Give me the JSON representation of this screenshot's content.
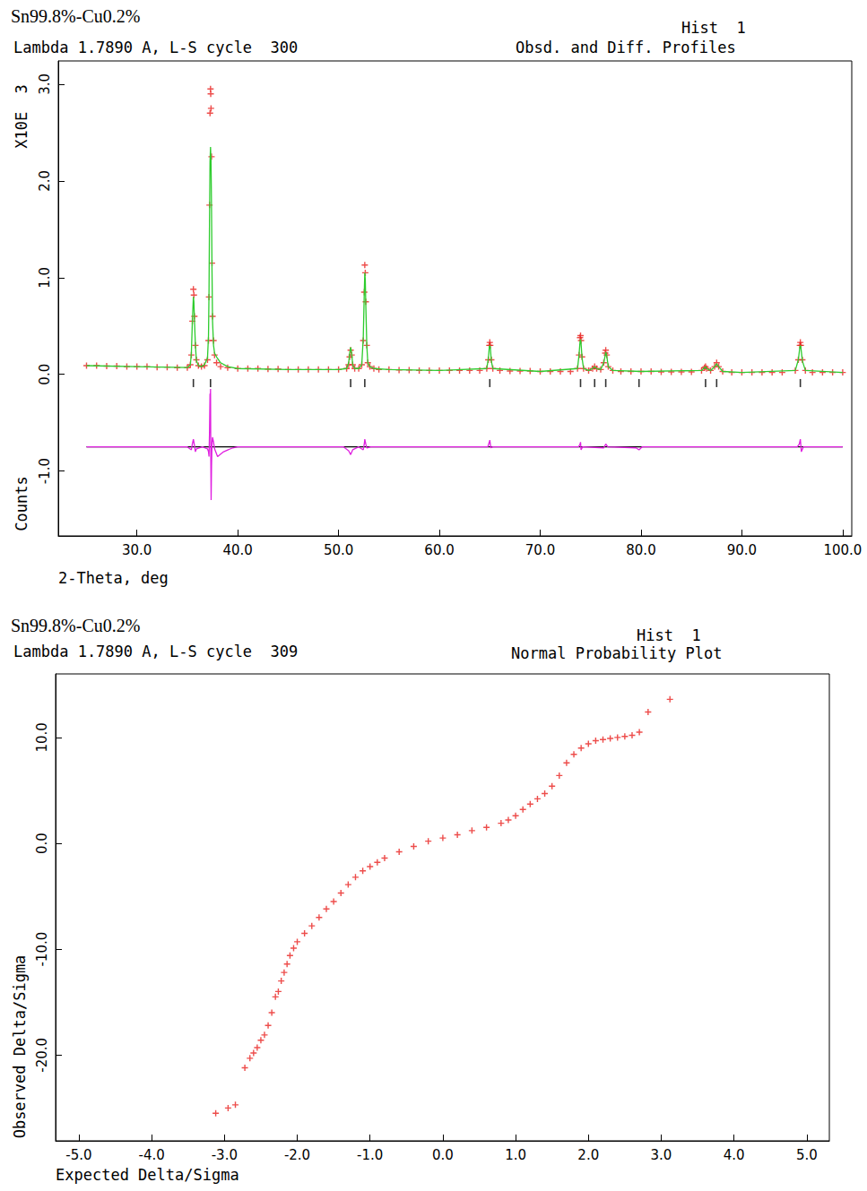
{
  "chart_data": [
    {
      "type": "rietveld",
      "title": "Sn99.8%-Cu0.2%",
      "subtitle": "Lambda 1.7890 A, L-S cycle  300",
      "histogram_label": "Hist  1",
      "plot_label": "Obsd. and Diff. Profiles",
      "xlabel": "2-Theta, deg",
      "ylabel": "Counts",
      "yscale_label": "X10E  3",
      "grid": false,
      "xlim": [
        22.2,
        100.9
      ],
      "ylim": [
        -1.67,
        3.24
      ],
      "xticks": [
        {
          "value": 30,
          "label": "30.0"
        },
        {
          "value": 40,
          "label": "40.0"
        },
        {
          "value": 50,
          "label": "50.0"
        },
        {
          "value": 60,
          "label": "60.0"
        },
        {
          "value": 70,
          "label": "70.0"
        },
        {
          "value": 80,
          "label": "80.0"
        },
        {
          "value": 90,
          "label": "90.0"
        },
        {
          "value": 100,
          "label": "100.0"
        }
      ],
      "yticks": [
        {
          "value": -1,
          "label": "-1.0"
        },
        {
          "value": 0,
          "label": "0.0"
        },
        {
          "value": 1,
          "label": "1.0"
        },
        {
          "value": 2,
          "label": "2.0"
        },
        {
          "value": 3,
          "label": "3.0"
        }
      ],
      "series": [
        {
          "type": "line",
          "line_style": "solid",
          "color": "#2ecc2e",
          "x": [
            25,
            30,
            35,
            35.3,
            35.4,
            35.5,
            35.6,
            35.65,
            35.7,
            35.8,
            35.9,
            36.1,
            36.4,
            36.7,
            37,
            37.1,
            37.15,
            37.2,
            37.25,
            37.3,
            37.35,
            37.4,
            37.45,
            37.5,
            37.6,
            37.7,
            37.9,
            38.3,
            39,
            40,
            45,
            50,
            50.8,
            51,
            51.1,
            51.2,
            51.3,
            51.4,
            51.6,
            52,
            52.3,
            52.45,
            52.55,
            52.6,
            52.65,
            52.7,
            52.8,
            52.9,
            53.1,
            53.5,
            55,
            60,
            64.7,
            64.85,
            64.95,
            65,
            65.05,
            65.15,
            65.3,
            70,
            73.7,
            73.85,
            73.95,
            74,
            74.05,
            74.15,
            74.3,
            74.8,
            75.2,
            75.4,
            75.6,
            76,
            76.3,
            76.45,
            76.5,
            76.6,
            76.75,
            77.2,
            80,
            86,
            86.3,
            86.4,
            86.5,
            86.9,
            87.3,
            87.5,
            87.7,
            88.1,
            90,
            95.3,
            95.6,
            95.75,
            95.8,
            95.85,
            96,
            96.3,
            100
          ],
          "values": [
            0.09,
            0.08,
            0.07,
            0.1,
            0.22,
            0.55,
            0.8,
            0.75,
            0.58,
            0.3,
            0.14,
            0.09,
            0.08,
            0.1,
            0.17,
            0.4,
            0.85,
            1.6,
            2.2,
            2.35,
            2.2,
            1.7,
            1.05,
            0.55,
            0.3,
            0.22,
            0.18,
            0.12,
            0.08,
            0.06,
            0.05,
            0.05,
            0.06,
            0.12,
            0.22,
            0.28,
            0.22,
            0.1,
            0.06,
            0.06,
            0.1,
            0.38,
            0.85,
            1.05,
            0.98,
            0.72,
            0.3,
            0.12,
            0.08,
            0.06,
            0.05,
            0.04,
            0.06,
            0.16,
            0.28,
            0.3,
            0.28,
            0.14,
            0.06,
            0.03,
            0.06,
            0.2,
            0.34,
            0.36,
            0.32,
            0.17,
            0.06,
            0.04,
            0.06,
            0.08,
            0.06,
            0.05,
            0.12,
            0.2,
            0.23,
            0.19,
            0.08,
            0.04,
            0.03,
            0.04,
            0.07,
            0.08,
            0.06,
            0.04,
            0.08,
            0.11,
            0.08,
            0.03,
            0.02,
            0.04,
            0.15,
            0.28,
            0.3,
            0.28,
            0.14,
            0.04,
            0.02
          ]
        },
        {
          "type": "scatter",
          "marker": "plus",
          "color": "#e8201e",
          "x": [
            25,
            26,
            27,
            28,
            29,
            30,
            31,
            32,
            33,
            34,
            35,
            35.3,
            35.4,
            35.5,
            35.6,
            35.65,
            35.7,
            35.8,
            35.9,
            36.1,
            36.4,
            36.7,
            37,
            37.1,
            37.15,
            37.2,
            37.25,
            37.3,
            37.32,
            37.35,
            37.4,
            37.45,
            37.5,
            37.6,
            37.7,
            37.9,
            38.3,
            39,
            40,
            41,
            42,
            43,
            44,
            45,
            46,
            47,
            48,
            49,
            50,
            50.8,
            51,
            51.1,
            51.2,
            51.3,
            51.4,
            51.6,
            52,
            52.3,
            52.45,
            52.55,
            52.6,
            52.65,
            52.7,
            52.8,
            52.9,
            53.1,
            53.5,
            54,
            55,
            56,
            57,
            58,
            59,
            60,
            61,
            62,
            63,
            64,
            64.7,
            64.85,
            64.95,
            65,
            65.05,
            65.15,
            65.3,
            66,
            67,
            68,
            69,
            70,
            71,
            72,
            73,
            73.7,
            73.85,
            73.95,
            74,
            74.05,
            74.15,
            74.3,
            74.8,
            75.2,
            75.4,
            75.6,
            76,
            76.3,
            76.45,
            76.5,
            76.6,
            76.75,
            77.2,
            78,
            79,
            80,
            81,
            82,
            83,
            84,
            85,
            86,
            86.3,
            86.4,
            86.5,
            86.9,
            87.3,
            87.5,
            87.7,
            88.1,
            89,
            90,
            91,
            92,
            93,
            94,
            95.3,
            95.6,
            95.75,
            95.8,
            95.85,
            96,
            96.3,
            97,
            98,
            99,
            100
          ],
          "values": [
            0.09,
            0.09,
            0.085,
            0.085,
            0.08,
            0.08,
            0.08,
            0.075,
            0.075,
            0.07,
            0.07,
            0.1,
            0.2,
            0.55,
            0.88,
            0.82,
            0.6,
            0.3,
            0.15,
            0.09,
            0.08,
            0.09,
            0.15,
            0.35,
            0.8,
            1.75,
            2.7,
            2.95,
            2.9,
            2.75,
            2.25,
            1.15,
            0.6,
            0.35,
            0.2,
            0.12,
            0.08,
            0.07,
            0.06,
            0.06,
            0.06,
            0.055,
            0.055,
            0.05,
            0.05,
            0.05,
            0.05,
            0.05,
            0.05,
            0.06,
            0.1,
            0.18,
            0.25,
            0.2,
            0.1,
            0.06,
            0.06,
            0.1,
            0.35,
            0.85,
            1.13,
            1.05,
            0.75,
            0.3,
            0.12,
            0.08,
            0.06,
            0.05,
            0.05,
            0.045,
            0.045,
            0.04,
            0.04,
            0.04,
            0.04,
            0.04,
            0.04,
            0.04,
            0.06,
            0.15,
            0.3,
            0.33,
            0.3,
            0.15,
            0.06,
            0.04,
            0.035,
            0.035,
            0.035,
            0.03,
            0.03,
            0.03,
            0.03,
            0.06,
            0.2,
            0.38,
            0.4,
            0.35,
            0.18,
            0.06,
            0.04,
            0.06,
            0.08,
            0.06,
            0.05,
            0.12,
            0.22,
            0.25,
            0.2,
            0.08,
            0.04,
            0.03,
            0.03,
            0.03,
            0.03,
            0.025,
            0.025,
            0.025,
            0.025,
            0.04,
            0.07,
            0.08,
            0.06,
            0.04,
            0.08,
            0.12,
            0.08,
            0.03,
            0.02,
            0.02,
            0.02,
            0.02,
            0.02,
            0.02,
            0.04,
            0.15,
            0.3,
            0.33,
            0.3,
            0.15,
            0.04,
            0.02,
            0.02,
            0.02,
            0.02
          ]
        },
        {
          "type": "line",
          "line_style": "solid",
          "color": "#000000",
          "x": [
            25,
            100
          ],
          "values": [
            -0.75,
            -0.75
          ]
        },
        {
          "type": "line",
          "line_style": "solid",
          "color": "#e020e0",
          "x": [
            25,
            35,
            35.4,
            35.5,
            35.6,
            35.7,
            35.8,
            35.9,
            36.5,
            37,
            37.1,
            37.15,
            37.2,
            37.25,
            37.28,
            37.3,
            37.33,
            37.36,
            37.4,
            37.45,
            37.5,
            37.6,
            37.7,
            38,
            38.6,
            39.5,
            40,
            50.5,
            51,
            51.2,
            51.4,
            52,
            52.45,
            52.55,
            52.6,
            52.7,
            52.8,
            53.2,
            64.8,
            64.95,
            65,
            65.1,
            65.3,
            73.8,
            73.95,
            74,
            74.05,
            74.2,
            76.3,
            76.5,
            76.7,
            79.5,
            79.8,
            80.1,
            95.5,
            95.7,
            95.8,
            95.9,
            96.1,
            100
          ],
          "values": [
            -0.75,
            -0.75,
            -0.78,
            -0.72,
            -0.67,
            -0.73,
            -0.8,
            -0.77,
            -0.75,
            -0.77,
            -0.8,
            -0.85,
            -0.6,
            -0.2,
            -0.3,
            -0.15,
            -0.9,
            -1.3,
            -0.95,
            -0.7,
            -0.65,
            -0.7,
            -0.77,
            -0.85,
            -0.8,
            -0.76,
            -0.75,
            -0.75,
            -0.79,
            -0.83,
            -0.78,
            -0.75,
            -0.78,
            -0.72,
            -0.67,
            -0.72,
            -0.76,
            -0.75,
            -0.75,
            -0.7,
            -0.68,
            -0.76,
            -0.75,
            -0.75,
            -0.72,
            -0.7,
            -0.78,
            -0.75,
            -0.76,
            -0.72,
            -0.75,
            -0.76,
            -0.78,
            -0.75,
            -0.75,
            -0.72,
            -0.67,
            -0.8,
            -0.75,
            -0.75
          ]
        },
        {
          "type": "ticks",
          "color": "#000000",
          "x": [
            35.6,
            37.3,
            51.2,
            52.6,
            65.0,
            74.0,
            75.4,
            76.5,
            79.8,
            86.4,
            87.5,
            95.8
          ],
          "values": [
            -0.09,
            -0.09,
            -0.09,
            -0.09,
            -0.09,
            -0.09,
            -0.09,
            -0.09,
            -0.09,
            -0.09,
            -0.09,
            -0.09
          ]
        }
      ]
    },
    {
      "type": "scatter",
      "title": "Sn99.8%-Cu0.2%",
      "subtitle": "Lambda 1.7890 A, L-S cycle  309",
      "histogram_label": "Hist  1",
      "plot_label": "Normal Probability Plot",
      "xlabel": "Expected Delta/Sigma",
      "ylabel": "Observed Delta/Sigma",
      "grid": false,
      "xlim": [
        -5.32,
        5.31
      ],
      "ylim": [
        -28.1,
        16.0
      ],
      "xticks": [
        {
          "value": -5,
          "label": "-5.0"
        },
        {
          "value": -4,
          "label": "-4.0"
        },
        {
          "value": -3,
          "label": "-3.0"
        },
        {
          "value": -2,
          "label": "-2.0"
        },
        {
          "value": -1,
          "label": "-1.0"
        },
        {
          "value": 0,
          "label": "0.0"
        },
        {
          "value": 1,
          "label": "1.0"
        },
        {
          "value": 2,
          "label": "2.0"
        },
        {
          "value": 3,
          "label": "3.0"
        },
        {
          "value": 4,
          "label": "4.0"
        },
        {
          "value": 5,
          "label": "5.0"
        }
      ],
      "yticks": [
        {
          "value": -20,
          "label": "-20.0"
        },
        {
          "value": -10,
          "label": "-10.0"
        },
        {
          "value": 0,
          "label": "0.0"
        },
        {
          "value": 10,
          "label": "10.0"
        }
      ],
      "series": [
        {
          "type": "scatter",
          "marker": "plus",
          "color": "#e8201e",
          "x": [
            -3.12,
            -2.95,
            -2.85,
            -2.72,
            -2.65,
            -2.6,
            -2.55,
            -2.5,
            -2.45,
            -2.4,
            -2.35,
            -2.3,
            -2.26,
            -2.22,
            -2.18,
            -2.14,
            -2.1,
            -2.05,
            -2.0,
            -1.9,
            -1.8,
            -1.7,
            -1.6,
            -1.5,
            -1.4,
            -1.3,
            -1.2,
            -1.1,
            -1.0,
            -0.9,
            -0.8,
            -0.6,
            -0.4,
            -0.2,
            0.0,
            0.2,
            0.4,
            0.6,
            0.8,
            0.9,
            1.0,
            1.1,
            1.2,
            1.3,
            1.4,
            1.5,
            1.6,
            1.7,
            1.8,
            1.9,
            2.0,
            2.1,
            2.2,
            2.3,
            2.4,
            2.5,
            2.6,
            2.7,
            2.82,
            3.12
          ],
          "values": [
            -25.5,
            -25,
            -24.7,
            -21.2,
            -20.3,
            -19.8,
            -19.3,
            -18.6,
            -18.1,
            -17.2,
            -16,
            -14.5,
            -14,
            -13,
            -12.2,
            -11.4,
            -10.6,
            -9.9,
            -9.3,
            -8.5,
            -7.8,
            -7,
            -6.2,
            -5.5,
            -4.7,
            -3.9,
            -3.2,
            -2.6,
            -2.2,
            -1.8,
            -1.4,
            -0.8,
            -0.3,
            0.2,
            0.5,
            0.8,
            1.2,
            1.5,
            1.9,
            2.2,
            2.6,
            3.2,
            3.7,
            4.2,
            4.7,
            5.4,
            6.4,
            7.6,
            8.4,
            9.0,
            9.4,
            9.7,
            9.8,
            9.9,
            10.0,
            10.1,
            10.2,
            10.5,
            12.4,
            13.6
          ]
        }
      ]
    }
  ]
}
